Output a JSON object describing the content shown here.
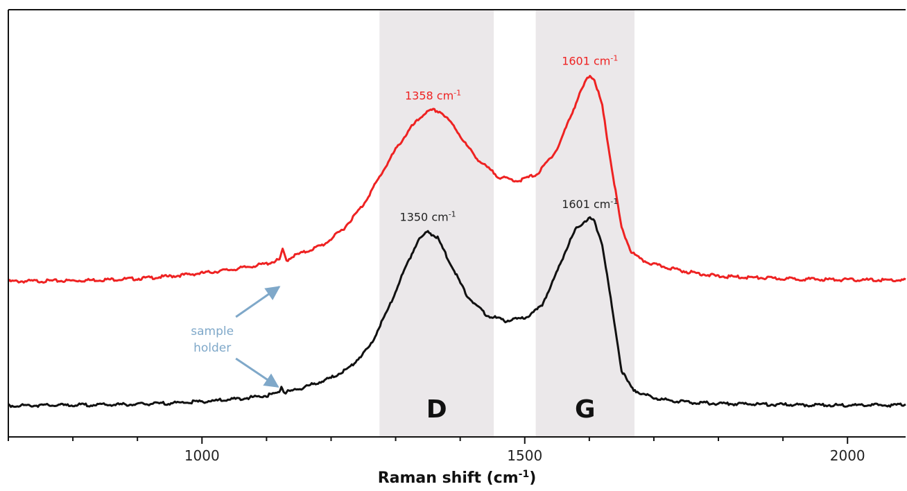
{
  "chart_data": {
    "type": "line",
    "xlabel_main": "Raman shift (cm",
    "xlabel_sup": "-1",
    "xlabel_tail": ")",
    "xlim": [
      700,
      2090
    ],
    "ylim": [
      0,
      1
    ],
    "x_ticks": [
      {
        "value": 1000,
        "label": "1000"
      },
      {
        "value": 1500,
        "label": "1500"
      },
      {
        "value": 2000,
        "label": "2000"
      }
    ],
    "minor_tick_step": 100,
    "grid": false,
    "bands": [
      {
        "label": "D",
        "from": 1275,
        "to": 1452,
        "color": "#ebe8ea"
      },
      {
        "label": "G",
        "from": 1517,
        "to": 1670,
        "color": "#ebe8ea"
      }
    ],
    "series": [
      {
        "color": "#ee2222",
        "x": [
          700,
          800,
          900,
          950,
          1000,
          1050,
          1100,
          1120,
          1125,
          1131,
          1137,
          1142,
          1160,
          1190,
          1220,
          1250,
          1275,
          1300,
          1325,
          1345,
          1358,
          1370,
          1390,
          1410,
          1430,
          1460,
          1490,
          1520,
          1550,
          1570,
          1585,
          1595,
          1601,
          1608,
          1620,
          1635,
          1650,
          1665,
          1680,
          1700,
          1750,
          1800,
          1900,
          2000,
          2090
        ],
        "y": [
          0.365,
          0.367,
          0.372,
          0.378,
          0.386,
          0.396,
          0.41,
          0.42,
          0.445,
          0.418,
          0.425,
          0.43,
          0.44,
          0.46,
          0.5,
          0.56,
          0.63,
          0.7,
          0.758,
          0.792,
          0.8,
          0.795,
          0.76,
          0.71,
          0.67,
          0.63,
          0.62,
          0.638,
          0.7,
          0.78,
          0.84,
          0.875,
          0.888,
          0.878,
          0.81,
          0.65,
          0.5,
          0.44,
          0.42,
          0.408,
          0.39,
          0.378,
          0.372,
          0.369,
          0.368
        ]
      },
      {
        "color": "#111111",
        "x": [
          700,
          800,
          900,
          950,
          1000,
          1050,
          1100,
          1118,
          1123,
          1128,
          1133,
          1140,
          1160,
          1200,
          1230,
          1260,
          1290,
          1315,
          1335,
          1350,
          1365,
          1385,
          1410,
          1440,
          1470,
          1500,
          1525,
          1545,
          1565,
          1580,
          1595,
          1601,
          1608,
          1620,
          1635,
          1650,
          1665,
          1680,
          1700,
          1720,
          1760,
          1800,
          1900,
          2000,
          2090
        ],
        "y": [
          0.05,
          0.051,
          0.053,
          0.056,
          0.06,
          0.066,
          0.075,
          0.082,
          0.098,
          0.082,
          0.085,
          0.088,
          0.097,
          0.12,
          0.148,
          0.2,
          0.3,
          0.4,
          0.47,
          0.492,
          0.475,
          0.41,
          0.33,
          0.28,
          0.265,
          0.272,
          0.3,
          0.37,
          0.45,
          0.5,
          0.52,
          0.525,
          0.517,
          0.46,
          0.3,
          0.14,
          0.095,
          0.08,
          0.07,
          0.064,
          0.058,
          0.055,
          0.052,
          0.051,
          0.051
        ]
      }
    ],
    "peak_labels": [
      {
        "x": 1358,
        "y": 0.8,
        "main": "1358 cm",
        "sup": "-1",
        "color": "#ee2222"
      },
      {
        "x": 1601,
        "y": 0.888,
        "main": "1601 cm",
        "sup": "-1",
        "color": "#ee2222"
      },
      {
        "x": 1350,
        "y": 0.492,
        "main": "1350 cm",
        "sup": "-1",
        "color": "#222222"
      },
      {
        "x": 1601,
        "y": 0.525,
        "main": "1601 cm",
        "sup": "-1",
        "color": "#222222"
      }
    ],
    "annotation": {
      "lines": [
        "sample",
        "holder"
      ],
      "color": "#7fa8c9",
      "label_x": 1016,
      "label_y": 0.22,
      "targets": [
        {
          "x": 1124,
          "y": 0.36
        },
        {
          "x": 1122,
          "y": 0.085
        }
      ]
    }
  }
}
